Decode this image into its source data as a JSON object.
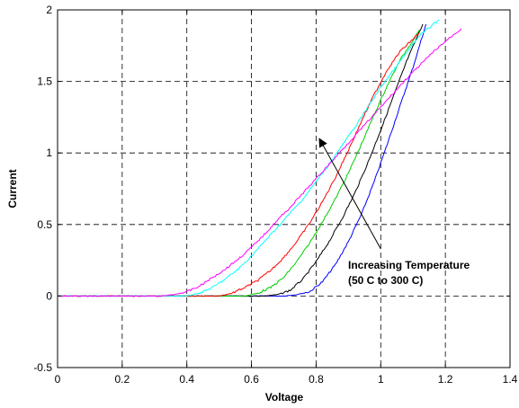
{
  "chart_data": {
    "type": "line",
    "title": "",
    "xlabel": "Voltage",
    "ylabel": "Current",
    "xlim": [
      0,
      1.4
    ],
    "ylim": [
      -0.5,
      2
    ],
    "xticks": [
      "0",
      "0.2",
      "0.4",
      "0.6",
      "0.8",
      "1",
      "1.2",
      "1.4"
    ],
    "yticks": [
      "-0.5",
      "0",
      "0.5",
      "1",
      "1.5",
      "2"
    ],
    "grid": true,
    "legend": "none",
    "annotation": {
      "lines": [
        "Increasing Temperature",
        "(50 C to 300 C)"
      ],
      "arrow_from": [
        1.0,
        0.33
      ],
      "arrow_to": [
        0.81,
        1.1
      ]
    },
    "series": [
      {
        "color": "#0000ff",
        "points": [
          [
            0,
            0
          ],
          [
            0.7,
            0
          ],
          [
            0.74,
            0.01
          ],
          [
            0.78,
            0.03
          ],
          [
            0.82,
            0.1
          ],
          [
            0.86,
            0.22
          ],
          [
            0.9,
            0.38
          ],
          [
            0.94,
            0.57
          ],
          [
            0.98,
            0.8
          ],
          [
            1.02,
            1.06
          ],
          [
            1.06,
            1.33
          ],
          [
            1.1,
            1.6
          ],
          [
            1.14,
            1.9
          ]
        ]
      },
      {
        "color": "#000000",
        "points": [
          [
            0,
            0
          ],
          [
            0.64,
            0
          ],
          [
            0.68,
            0.01
          ],
          [
            0.72,
            0.04
          ],
          [
            0.76,
            0.12
          ],
          [
            0.8,
            0.24
          ],
          [
            0.84,
            0.38
          ],
          [
            0.88,
            0.54
          ],
          [
            0.92,
            0.72
          ],
          [
            0.96,
            0.93
          ],
          [
            1.0,
            1.16
          ],
          [
            1.04,
            1.4
          ],
          [
            1.08,
            1.64
          ],
          [
            1.13,
            1.9
          ]
        ]
      },
      {
        "color": "#00cc00",
        "points": [
          [
            0,
            0
          ],
          [
            0.58,
            0
          ],
          [
            0.62,
            0.02
          ],
          [
            0.66,
            0.06
          ],
          [
            0.7,
            0.13
          ],
          [
            0.74,
            0.24
          ],
          [
            0.78,
            0.37
          ],
          [
            0.82,
            0.52
          ],
          [
            0.86,
            0.68
          ],
          [
            0.9,
            0.86
          ],
          [
            0.94,
            1.06
          ],
          [
            0.98,
            1.27
          ],
          [
            1.02,
            1.47
          ],
          [
            1.06,
            1.65
          ],
          [
            1.12,
            1.86
          ]
        ]
      },
      {
        "color": "#ff0000",
        "points": [
          [
            0,
            0
          ],
          [
            0.5,
            0
          ],
          [
            0.54,
            0.02
          ],
          [
            0.58,
            0.06
          ],
          [
            0.62,
            0.11
          ],
          [
            0.66,
            0.18
          ],
          [
            0.7,
            0.27
          ],
          [
            0.74,
            0.38
          ],
          [
            0.78,
            0.51
          ],
          [
            0.82,
            0.66
          ],
          [
            0.86,
            0.83
          ],
          [
            0.9,
            1.02
          ],
          [
            0.94,
            1.22
          ],
          [
            0.98,
            1.41
          ],
          [
            1.02,
            1.58
          ],
          [
            1.06,
            1.71
          ],
          [
            1.12,
            1.84
          ]
        ]
      },
      {
        "color": "#00ffff",
        "points": [
          [
            0,
            0
          ],
          [
            0.4,
            0
          ],
          [
            0.44,
            0.02
          ],
          [
            0.48,
            0.06
          ],
          [
            0.52,
            0.12
          ],
          [
            0.56,
            0.19
          ],
          [
            0.6,
            0.28
          ],
          [
            0.64,
            0.38
          ],
          [
            0.68,
            0.48
          ],
          [
            0.72,
            0.58
          ],
          [
            0.76,
            0.68
          ],
          [
            0.8,
            0.8
          ],
          [
            0.84,
            0.92
          ],
          [
            0.88,
            1.05
          ],
          [
            0.92,
            1.18
          ],
          [
            0.96,
            1.32
          ],
          [
            1.0,
            1.46
          ],
          [
            1.04,
            1.58
          ],
          [
            1.08,
            1.7
          ],
          [
            1.12,
            1.82
          ],
          [
            1.18,
            1.93
          ]
        ]
      },
      {
        "color": "#ff00ff",
        "points": [
          [
            0,
            0
          ],
          [
            0.32,
            0
          ],
          [
            0.36,
            0.01
          ],
          [
            0.4,
            0.03
          ],
          [
            0.44,
            0.07
          ],
          [
            0.48,
            0.13
          ],
          [
            0.52,
            0.19
          ],
          [
            0.56,
            0.26
          ],
          [
            0.6,
            0.34
          ],
          [
            0.64,
            0.43
          ],
          [
            0.68,
            0.53
          ],
          [
            0.72,
            0.62
          ],
          [
            0.76,
            0.72
          ],
          [
            0.8,
            0.82
          ],
          [
            0.84,
            0.92
          ],
          [
            0.88,
            1.02
          ],
          [
            0.92,
            1.12
          ],
          [
            0.96,
            1.22
          ],
          [
            1.0,
            1.32
          ],
          [
            1.04,
            1.42
          ],
          [
            1.08,
            1.52
          ],
          [
            1.12,
            1.61
          ],
          [
            1.16,
            1.7
          ],
          [
            1.2,
            1.78
          ],
          [
            1.25,
            1.87
          ]
        ]
      }
    ]
  }
}
